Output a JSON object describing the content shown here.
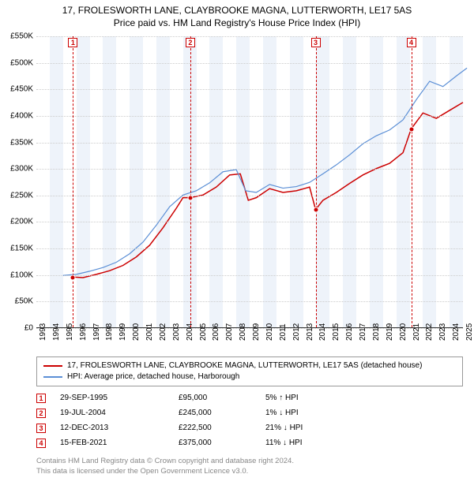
{
  "title_line1": "17, FROLESWORTH LANE, CLAYBROOKE MAGNA, LUTTERWORTH, LE17 5AS",
  "title_line2": "Price paid vs. HM Land Registry's House Price Index (HPI)",
  "chart": {
    "type": "line",
    "x_years": [
      1993,
      1994,
      1995,
      1996,
      1997,
      1998,
      1999,
      2000,
      2001,
      2002,
      2003,
      2004,
      2005,
      2006,
      2007,
      2008,
      2009,
      2010,
      2011,
      2012,
      2013,
      2014,
      2015,
      2016,
      2017,
      2018,
      2019,
      2020,
      2021,
      2022,
      2023,
      2024,
      2025
    ],
    "ylim": [
      0,
      550000
    ],
    "ytick_step": 50000,
    "ytick_labels": [
      "£0",
      "£50K",
      "£100K",
      "£150K",
      "£200K",
      "£250K",
      "£300K",
      "£350K",
      "£400K",
      "£450K",
      "£500K",
      "£550K"
    ],
    "background_color": "#ffffff",
    "band_color": "#eef3fa",
    "grid_color": "#cccccc",
    "series": [
      {
        "name": "17, FROLESWORTH LANE, CLAYBROOKE MAGNA, LUTTERWORTH, LE17 5AS (detached house)",
        "color": "#cc0000",
        "width": 1.5,
        "points": [
          [
            1995.75,
            95000
          ],
          [
            1996.5,
            94000
          ],
          [
            1997.5,
            100000
          ],
          [
            1998.5,
            107000
          ],
          [
            1999.5,
            117000
          ],
          [
            2000.5,
            133000
          ],
          [
            2001.5,
            155000
          ],
          [
            2002.5,
            188000
          ],
          [
            2003.5,
            225000
          ],
          [
            2004.0,
            245000
          ],
          [
            2004.55,
            245000
          ],
          [
            2005.5,
            250000
          ],
          [
            2006.5,
            265000
          ],
          [
            2007.5,
            288000
          ],
          [
            2008.3,
            290000
          ],
          [
            2008.9,
            240000
          ],
          [
            2009.5,
            245000
          ],
          [
            2010.5,
            262000
          ],
          [
            2011.5,
            255000
          ],
          [
            2012.5,
            258000
          ],
          [
            2013.5,
            265000
          ],
          [
            2013.95,
            222500
          ],
          [
            2014.5,
            240000
          ],
          [
            2015.5,
            255000
          ],
          [
            2016.5,
            272000
          ],
          [
            2017.5,
            288000
          ],
          [
            2018.5,
            300000
          ],
          [
            2019.5,
            310000
          ],
          [
            2020.5,
            330000
          ],
          [
            2021.12,
            375000
          ],
          [
            2022.0,
            405000
          ],
          [
            2023.0,
            395000
          ],
          [
            2024.0,
            410000
          ],
          [
            2025.0,
            425000
          ]
        ]
      },
      {
        "name": "HPI: Average price, detached house, Harborough",
        "color": "#5b8fd6",
        "width": 1.2,
        "points": [
          [
            1995.0,
            98000
          ],
          [
            1996.0,
            100000
          ],
          [
            1997.0,
            106000
          ],
          [
            1998.0,
            113000
          ],
          [
            1999.0,
            123000
          ],
          [
            2000.0,
            139000
          ],
          [
            2001.0,
            161000
          ],
          [
            2002.0,
            193000
          ],
          [
            2003.0,
            228000
          ],
          [
            2004.0,
            250000
          ],
          [
            2005.0,
            258000
          ],
          [
            2006.0,
            273000
          ],
          [
            2007.0,
            294000
          ],
          [
            2008.0,
            298000
          ],
          [
            2008.7,
            258000
          ],
          [
            2009.5,
            255000
          ],
          [
            2010.5,
            270000
          ],
          [
            2011.5,
            263000
          ],
          [
            2012.5,
            266000
          ],
          [
            2013.5,
            274000
          ],
          [
            2014.5,
            290000
          ],
          [
            2015.5,
            307000
          ],
          [
            2016.5,
            326000
          ],
          [
            2017.5,
            347000
          ],
          [
            2018.5,
            362000
          ],
          [
            2019.5,
            373000
          ],
          [
            2020.5,
            392000
          ],
          [
            2021.5,
            430000
          ],
          [
            2022.5,
            465000
          ],
          [
            2023.5,
            455000
          ],
          [
            2024.5,
            475000
          ],
          [
            2025.3,
            490000
          ]
        ]
      }
    ],
    "markers": [
      {
        "n": "1",
        "x": 1995.75,
        "y": 95000
      },
      {
        "n": "2",
        "x": 2004.55,
        "y": 245000
      },
      {
        "n": "3",
        "x": 2013.95,
        "y": 222500
      },
      {
        "n": "4",
        "x": 2021.12,
        "y": 375000
      }
    ]
  },
  "legend_items": [
    {
      "color": "#cc0000",
      "label": "17, FROLESWORTH LANE, CLAYBROOKE MAGNA, LUTTERWORTH, LE17 5AS (detached house)"
    },
    {
      "color": "#5b8fd6",
      "label": "HPI: Average price, detached house, Harborough"
    }
  ],
  "sales": [
    {
      "n": "1",
      "date": "29-SEP-1995",
      "price": "£95,000",
      "diff": "5% ↑ HPI"
    },
    {
      "n": "2",
      "date": "19-JUL-2004",
      "price": "£245,000",
      "diff": "1% ↓ HPI"
    },
    {
      "n": "3",
      "date": "12-DEC-2013",
      "price": "£222,500",
      "diff": "21% ↓ HPI"
    },
    {
      "n": "4",
      "date": "15-FEB-2021",
      "price": "£375,000",
      "diff": "11% ↓ HPI"
    }
  ],
  "footnote_line1": "Contains HM Land Registry data © Crown copyright and database right 2024.",
  "footnote_line2": "This data is licensed under the Open Government Licence v3.0."
}
